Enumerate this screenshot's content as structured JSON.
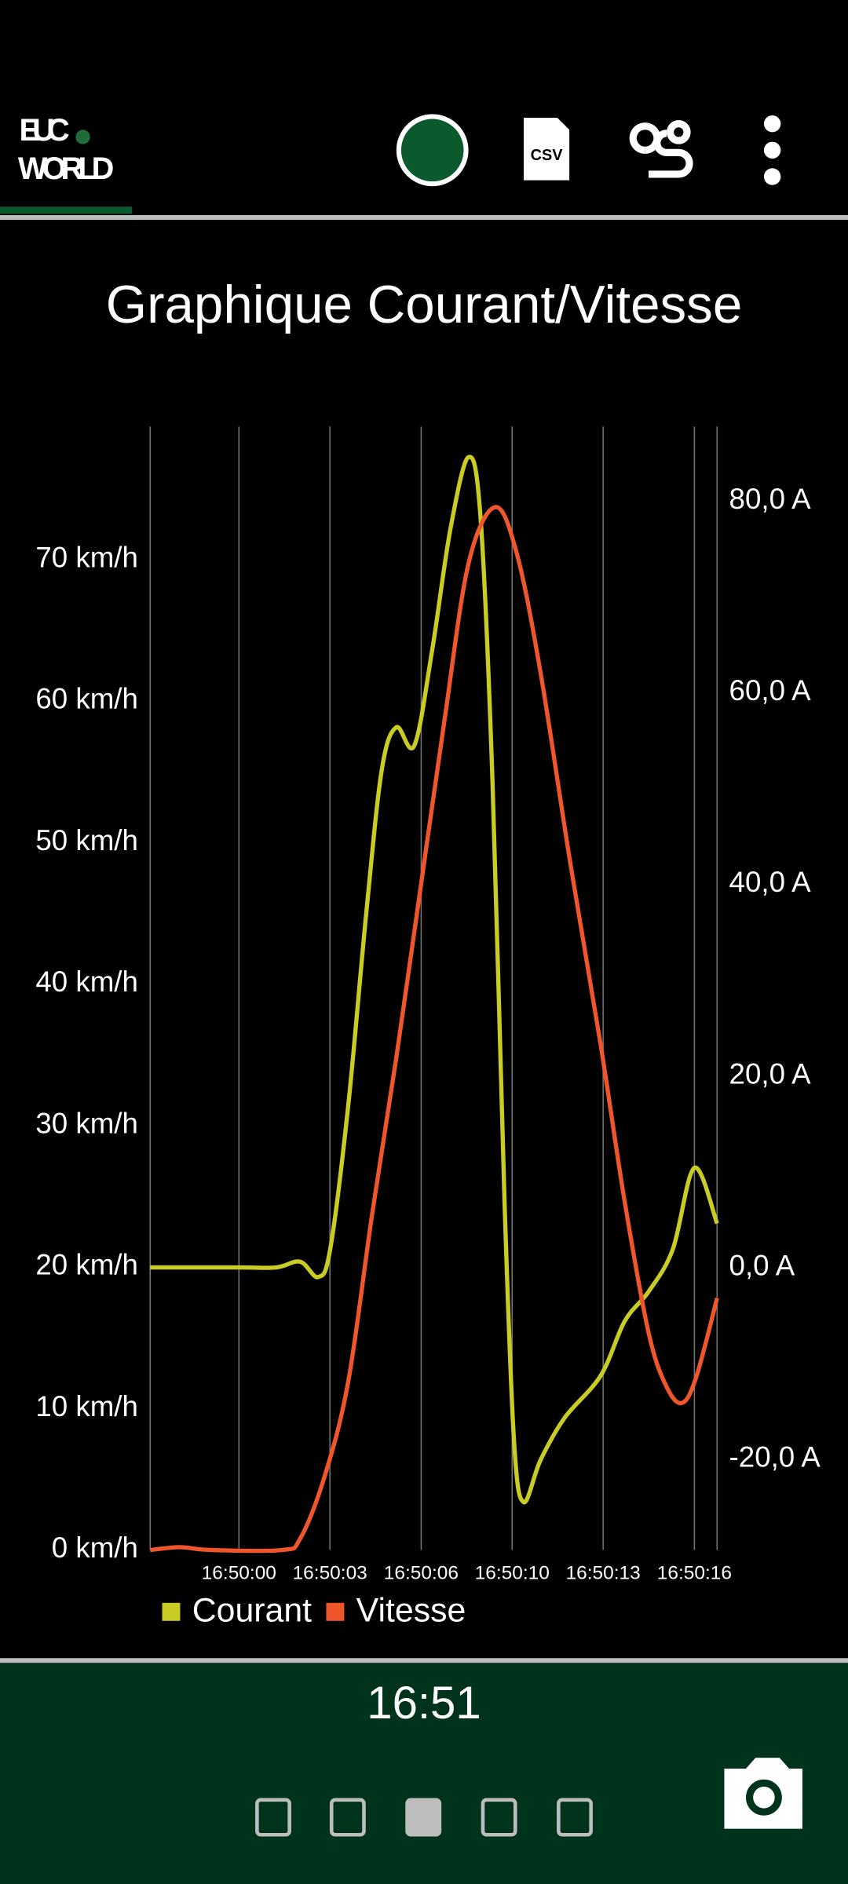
{
  "app_bar": {
    "logo_top": "EUC",
    "logo_bottom": "WORLD",
    "csv_icon": "CSV"
  },
  "footer": {
    "time": "16:51"
  },
  "chart_data": {
    "type": "line",
    "title": "Graphique Courant/Vitesse",
    "xlim": [
      -3.25,
      17.5
    ],
    "xticks": [
      {
        "value": 0,
        "label": "16:50:00"
      },
      {
        "value": 3.33,
        "label": "16:50:03"
      },
      {
        "value": 6.67,
        "label": "16:50:06"
      },
      {
        "value": 10,
        "label": "16:50:10"
      },
      {
        "value": 13.33,
        "label": "16:50:13"
      },
      {
        "value": 16.67,
        "label": "16:50:16"
      }
    ],
    "ylim": [
      0,
      79.4
    ],
    "yticks": [
      {
        "value": 0,
        "label": "0 km/h"
      },
      {
        "value": 10,
        "label": "10 km/h"
      },
      {
        "value": 20,
        "label": "20 km/h"
      },
      {
        "value": 30,
        "label": "30 km/h"
      },
      {
        "value": 40,
        "label": "40 km/h"
      },
      {
        "value": 50,
        "label": "50 km/h"
      },
      {
        "value": 60,
        "label": "60 km/h"
      },
      {
        "value": 70,
        "label": "70 km/h"
      }
    ],
    "y2lim": [
      -29.5,
      87.8
    ],
    "y2ticks": [
      {
        "value": -20,
        "label": "-20,0 A"
      },
      {
        "value": 0,
        "label": "0,0 A"
      },
      {
        "value": 20,
        "label": "20,0 A"
      },
      {
        "value": 40,
        "label": "40,0 A"
      },
      {
        "value": 60,
        "label": "60,0 A"
      },
      {
        "value": 80,
        "label": "80,0 A"
      }
    ],
    "grid": true,
    "series": [
      {
        "name": "Courant",
        "color": "#c9cc22",
        "axis": "y2",
        "x": [
          -3.25,
          0,
          1.36,
          2.24,
          2.9,
          3.34,
          4.0,
          4.66,
          5.23,
          5.76,
          6.42,
          7.08,
          7.74,
          8.4,
          8.84,
          9.28,
          9.72,
          10.07,
          10.42,
          11.04,
          11.92,
          13.24,
          14.12,
          15.0,
          15.88,
          16.67,
          17.5
        ],
        "values": [
          0,
          0,
          0,
          0.6,
          -1,
          1.9,
          16.9,
          37,
          52,
          56.4,
          54.5,
          64.6,
          77.1,
          84.6,
          78.4,
          50.8,
          6.9,
          -18.2,
          -24.5,
          -20.1,
          -15.7,
          -11.3,
          -5.6,
          -2.5,
          1.9,
          10.4,
          4.6
        ]
      },
      {
        "name": "Vitesse",
        "color": "#f0562c",
        "x": [
          -3.25,
          -2.15,
          -1.06,
          1.58,
          2.24,
          3.12,
          4.0,
          4.88,
          5.76,
          6.64,
          7.52,
          8.4,
          9.37,
          10.16,
          11.04,
          12.14,
          13.24,
          14.12,
          15.0,
          15.66,
          16.23,
          16.75,
          17.5
        ],
        "values": [
          0,
          0.2,
          0,
          0,
          0.8,
          5.1,
          11.9,
          23.8,
          34.8,
          46.7,
          58.6,
          69.7,
          73.7,
          70.5,
          62,
          48.4,
          35.7,
          24.6,
          15.3,
          11.5,
          10.4,
          12.3,
          17.8
        ]
      }
    ]
  }
}
